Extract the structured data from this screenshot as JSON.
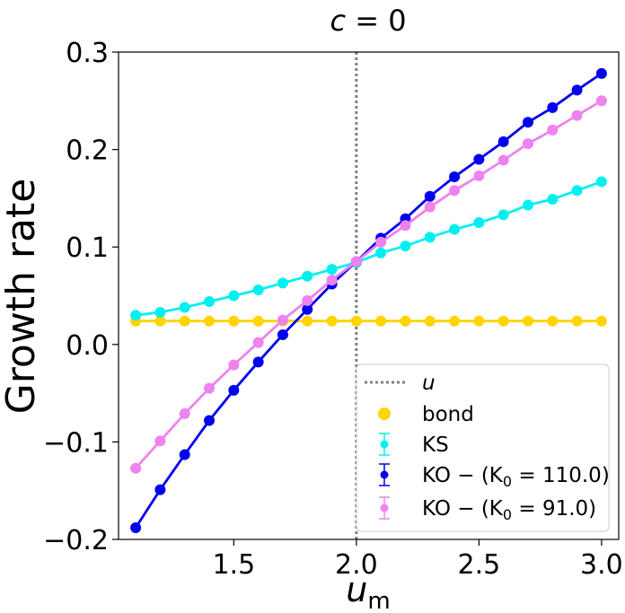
{
  "chart_data": {
    "type": "line",
    "title_var": "c",
    "title_rest": " = 0",
    "xlabel_main": "u",
    "xlabel_sub": "m",
    "ylabel": "Growth rate",
    "xlim": [
      1.03,
      3.07
    ],
    "ylim": [
      -0.2,
      0.3
    ],
    "x_ticks": [
      1.5,
      2.0,
      2.5,
      3.0
    ],
    "x_tick_labels": [
      "1.5",
      "2.0",
      "2.5",
      "3.0"
    ],
    "y_ticks": [
      -0.2,
      -0.1,
      0.0,
      0.1,
      0.2,
      0.3
    ],
    "y_tick_labels": [
      "−0.2",
      "−0.1",
      "0.0",
      "0.1",
      "0.2",
      "0.3"
    ],
    "vline": {
      "x": 2.0,
      "label": "u",
      "color": "#808080"
    },
    "x": [
      1.1,
      1.2,
      1.3,
      1.4,
      1.5,
      1.6,
      1.7,
      1.8,
      1.9,
      2.0,
      2.1,
      2.2,
      2.3,
      2.4,
      2.5,
      2.6,
      2.7,
      2.8,
      2.9,
      3.0
    ],
    "series": [
      {
        "name": "bond",
        "color": "#FFD400",
        "values": [
          0.024,
          0.024,
          0.024,
          0.024,
          0.024,
          0.024,
          0.024,
          0.024,
          0.024,
          0.024,
          0.024,
          0.024,
          0.024,
          0.024,
          0.024,
          0.024,
          0.024,
          0.024,
          0.024,
          0.024
        ]
      },
      {
        "name": "KS",
        "color": "#00F0F0",
        "values": [
          0.03,
          0.033,
          0.038,
          0.044,
          0.05,
          0.056,
          0.063,
          0.07,
          0.077,
          0.084,
          0.094,
          0.101,
          0.11,
          0.118,
          0.125,
          0.133,
          0.143,
          0.149,
          0.158,
          0.167
        ]
      },
      {
        "name": "KO − (K₀ = 110.0)",
        "color": "#0000F0",
        "values": [
          -0.188,
          -0.149,
          -0.113,
          -0.078,
          -0.047,
          -0.018,
          0.01,
          0.036,
          0.062,
          0.085,
          0.109,
          0.129,
          0.152,
          0.172,
          0.19,
          0.208,
          0.228,
          0.243,
          0.261,
          0.278
        ]
      },
      {
        "name": "KO − (K₀ = 91.0)",
        "color": "#EE82EE",
        "values": [
          -0.127,
          -0.099,
          -0.071,
          -0.045,
          -0.021,
          0.002,
          0.025,
          0.045,
          0.066,
          0.085,
          0.105,
          0.122,
          0.141,
          0.158,
          0.173,
          0.189,
          0.206,
          0.22,
          0.235,
          0.25
        ]
      }
    ],
    "legend": {
      "position": "lower-right",
      "entries": [
        {
          "kind": "line",
          "label_main": "u",
          "label_sub": "",
          "label_tail": ""
        },
        {
          "kind": "marker",
          "label_main": "bond",
          "label_sub": "",
          "label_tail": ""
        },
        {
          "kind": "errorbar",
          "label_main": "KS",
          "label_sub": "",
          "label_tail": ""
        },
        {
          "kind": "errorbar",
          "label_main": "KO − (K",
          "label_sub": "0",
          "label_tail": " = 110.0)"
        },
        {
          "kind": "errorbar",
          "label_main": "KO − (K",
          "label_sub": "0",
          "label_tail": " = 91.0)"
        }
      ]
    }
  }
}
